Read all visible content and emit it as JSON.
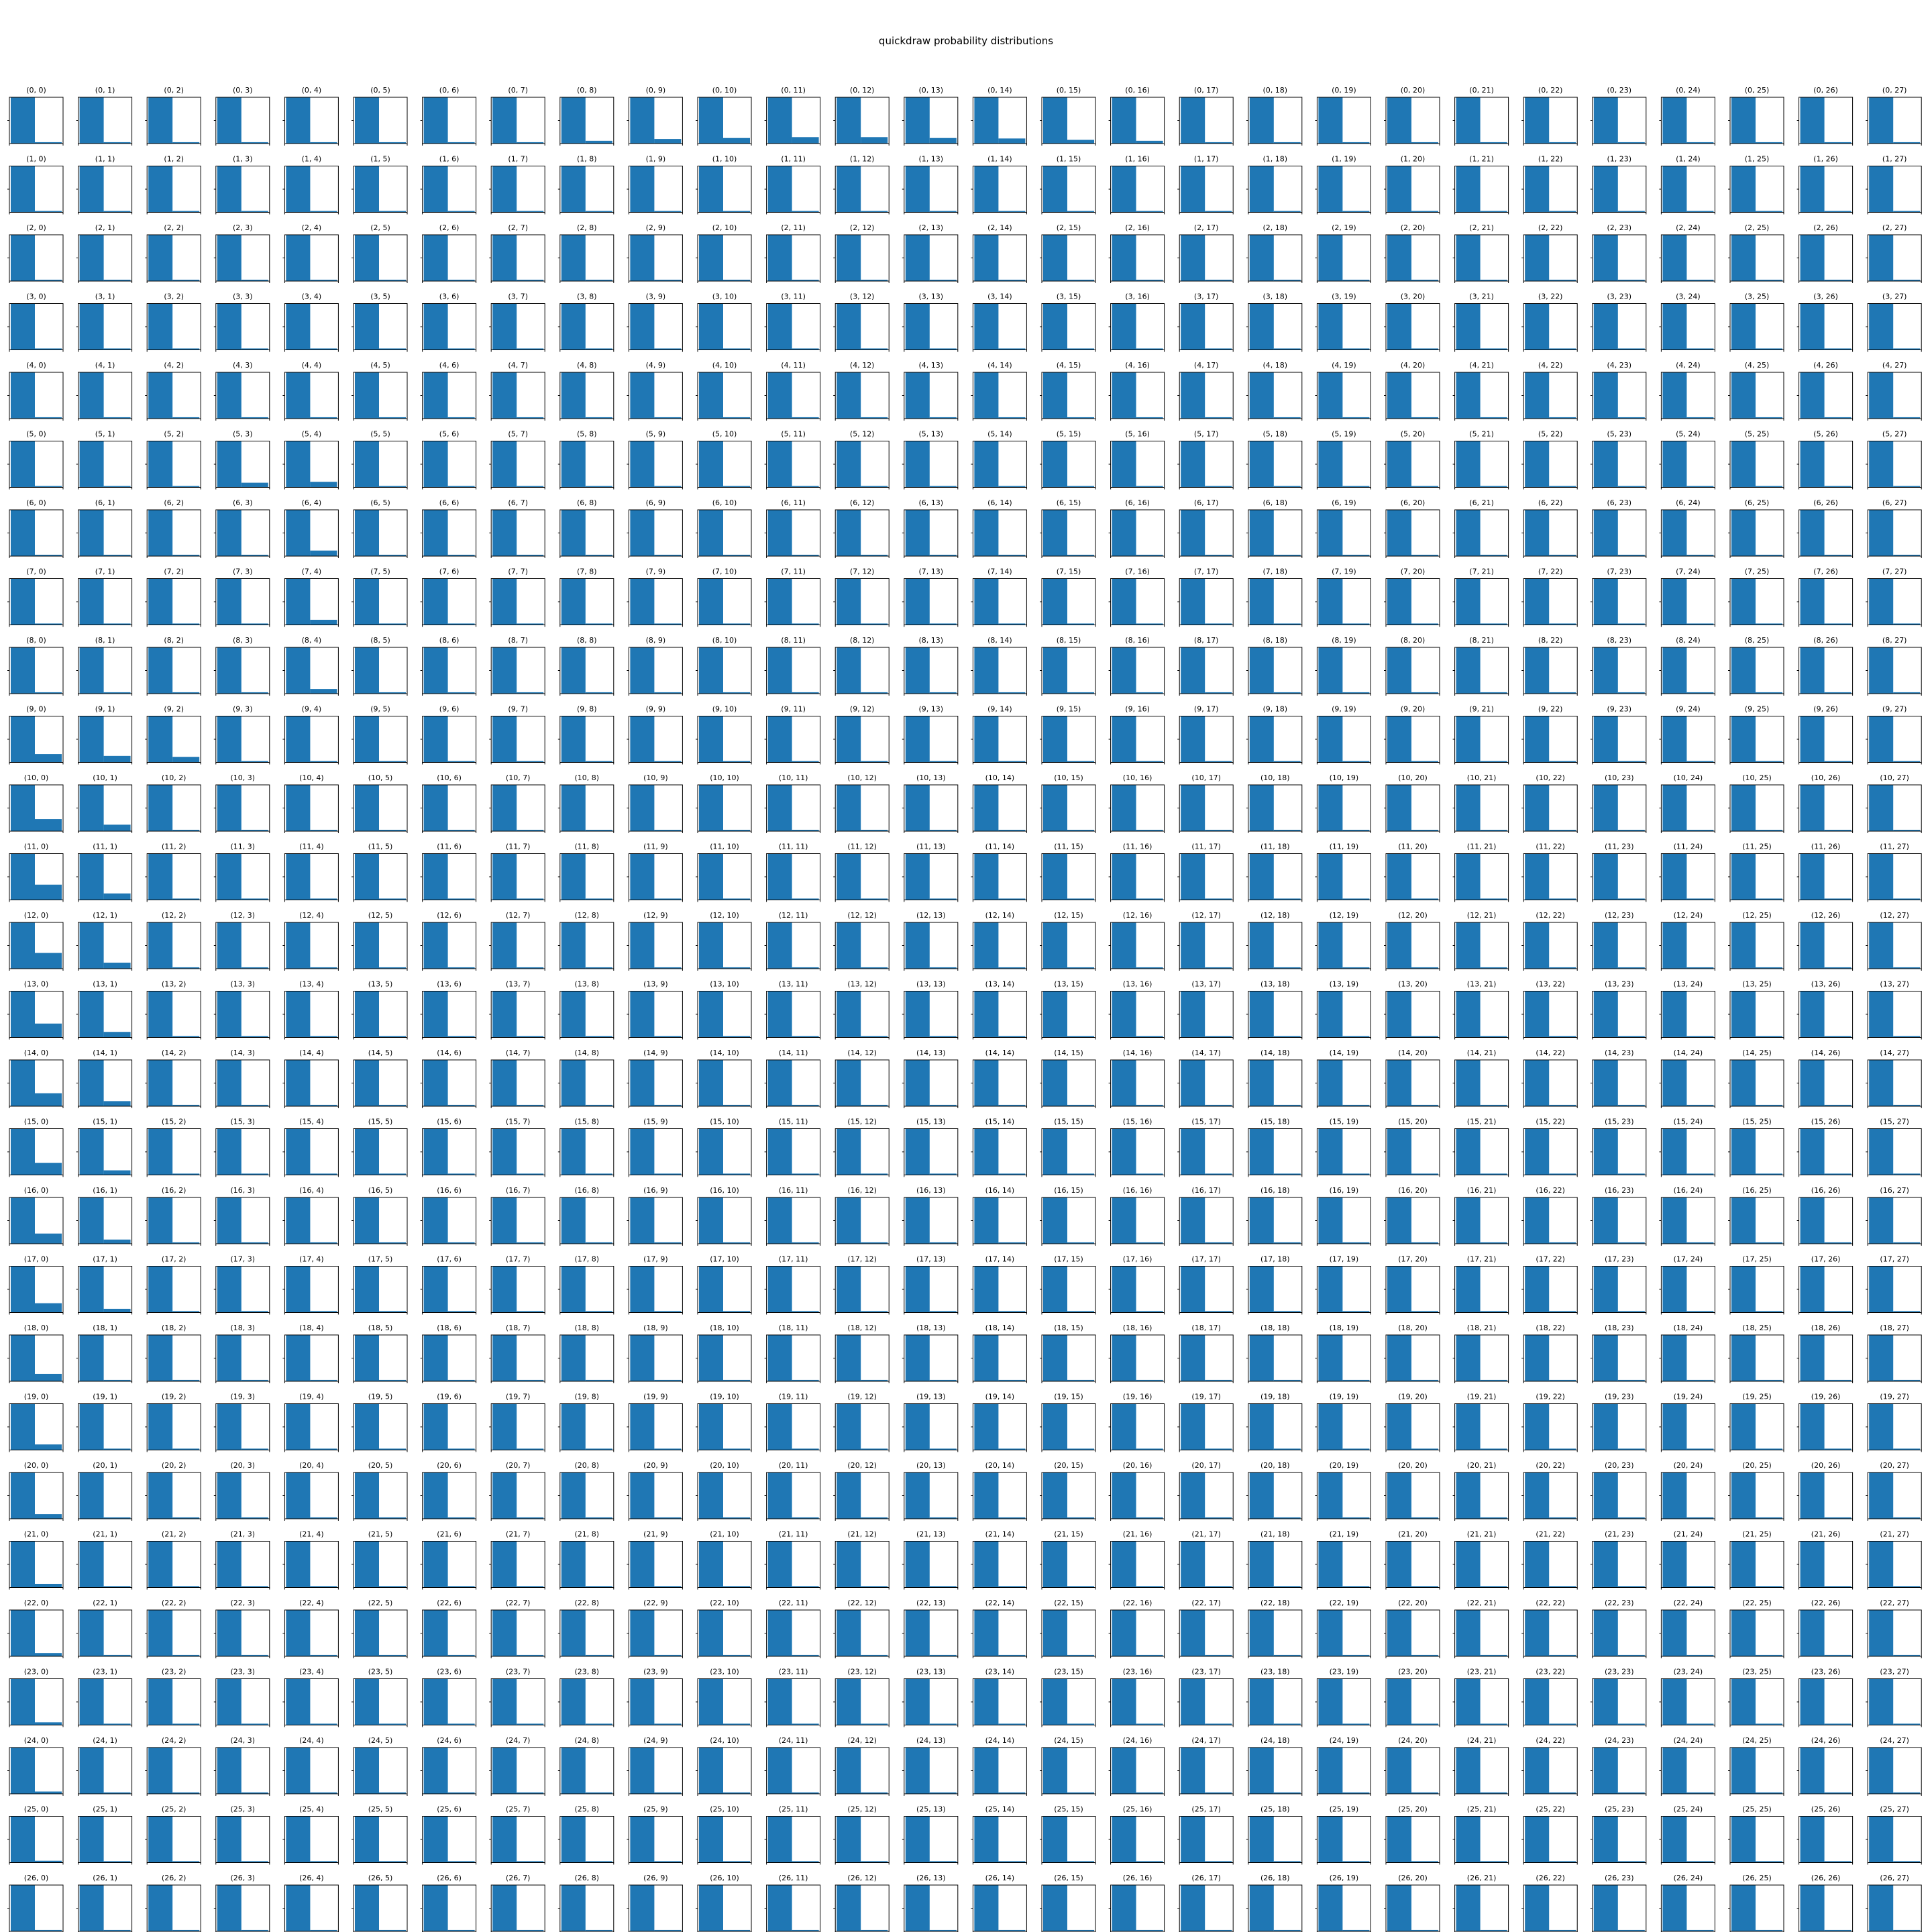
{
  "figure": {
    "title": "quickdraw probability distributions",
    "bar_color": "#1f77b4",
    "frame_color": "#000000",
    "background": "#ffffff"
  },
  "chart_data": {
    "type": "bar",
    "layout": "small-multiples",
    "rows": 28,
    "cols": 28,
    "panel_title_format": "(row, col)",
    "categories": [
      0,
      1
    ],
    "ylim": [
      0,
      1
    ],
    "grid": false,
    "xlabel": "",
    "ylabel": "",
    "second_bar_overrides": {
      "9,0": 0.18,
      "10,0": 0.26,
      "11,0": 0.33,
      "12,0": 0.34,
      "13,0": 0.3,
      "14,0": 0.28,
      "15,0": 0.26,
      "16,0": 0.22,
      "17,0": 0.2,
      "18,0": 0.16,
      "19,0": 0.12,
      "20,0": 0.1,
      "21,0": 0.08,
      "22,0": 0.07,
      "23,0": 0.06,
      "24,0": 0.05,
      "25,0": 0.04,
      "26,0": 0.03,
      "27,0": 0.02,
      "0,8": 0.06,
      "0,9": 0.1,
      "0,10": 0.12,
      "0,11": 0.14,
      "0,12": 0.14,
      "0,13": 0.12,
      "0,14": 0.11,
      "0,15": 0.08,
      "0,16": 0.06,
      "5,3": 0.1,
      "5,4": 0.12,
      "6,4": 0.12,
      "7,4": 0.11,
      "8,4": 0.1,
      "9,1": 0.14,
      "9,2": 0.12,
      "10,1": 0.14,
      "11,1": 0.14,
      "12,1": 0.13,
      "13,1": 0.12,
      "14,1": 0.11,
      "15,1": 0.1,
      "16,1": 0.09,
      "17,1": 0.08
    }
  }
}
